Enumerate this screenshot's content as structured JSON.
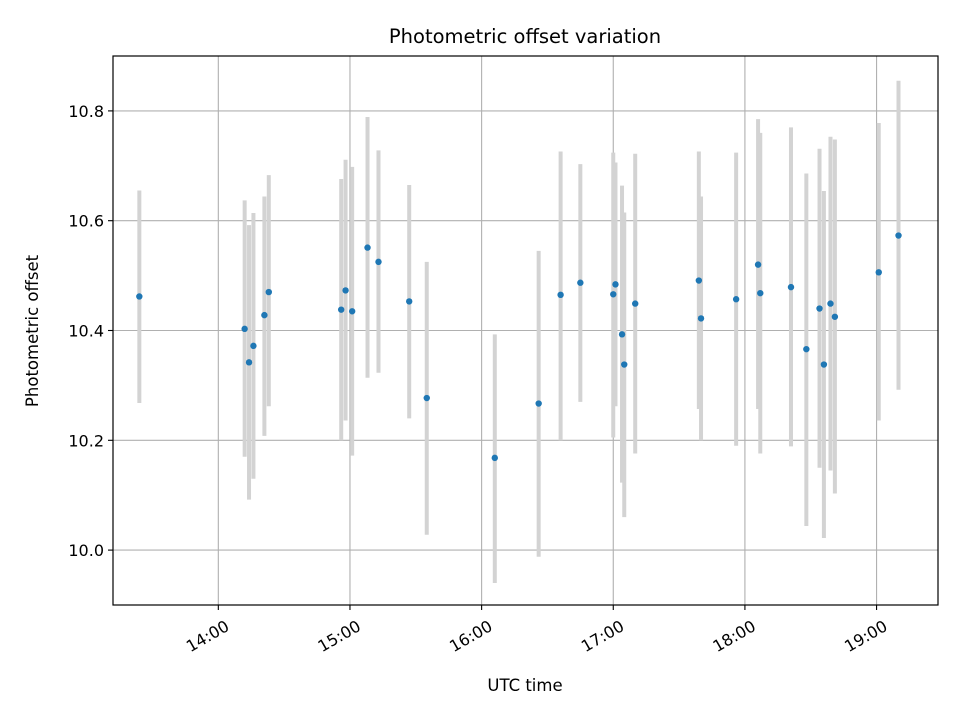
{
  "chart_data": {
    "type": "scatter",
    "title": "Photometric offset variation",
    "xlabel": "UTC time",
    "ylabel": "Photometric offset",
    "xlim": [
      "13:12",
      "19:28"
    ],
    "ylim": [
      9.9,
      10.9
    ],
    "xticks": [
      "14:00",
      "15:00",
      "16:00",
      "17:00",
      "18:00",
      "19:00"
    ],
    "yticks": [
      10.0,
      10.2,
      10.4,
      10.6,
      10.8
    ],
    "ytick_labels": [
      "10.0",
      "10.2",
      "10.4",
      "10.6",
      "10.8"
    ],
    "grid": true,
    "legend": "none",
    "colors": {
      "point": "#1f77b4",
      "errorbar": "#d3d3d3",
      "grid": "#b0b0b0"
    },
    "series": [
      {
        "points": [
          {
            "t": "13:24",
            "y": 10.462,
            "lo": 10.268,
            "hi": 10.655
          },
          {
            "t": "14:12",
            "y": 10.403,
            "lo": 10.17,
            "hi": 10.637
          },
          {
            "t": "14:14",
            "y": 10.342,
            "lo": 10.092,
            "hi": 10.592
          },
          {
            "t": "14:16",
            "y": 10.372,
            "lo": 10.13,
            "hi": 10.614
          },
          {
            "t": "14:21",
            "y": 10.428,
            "lo": 10.208,
            "hi": 10.644
          },
          {
            "t": "14:23",
            "y": 10.47,
            "lo": 10.262,
            "hi": 10.683
          },
          {
            "t": "14:56",
            "y": 10.438,
            "lo": 10.2,
            "hi": 10.676
          },
          {
            "t": "14:58",
            "y": 10.473,
            "lo": 10.236,
            "hi": 10.711
          },
          {
            "t": "15:01",
            "y": 10.435,
            "lo": 10.172,
            "hi": 10.698
          },
          {
            "t": "15:08",
            "y": 10.551,
            "lo": 10.314,
            "hi": 10.789
          },
          {
            "t": "15:13",
            "y": 10.525,
            "lo": 10.323,
            "hi": 10.728
          },
          {
            "t": "15:27",
            "y": 10.453,
            "lo": 10.24,
            "hi": 10.665
          },
          {
            "t": "15:35",
            "y": 10.277,
            "lo": 10.028,
            "hi": 10.525
          },
          {
            "t": "16:06",
            "y": 10.168,
            "lo": 9.94,
            "hi": 10.393
          },
          {
            "t": "16:26",
            "y": 10.267,
            "lo": 9.988,
            "hi": 10.545
          },
          {
            "t": "16:36",
            "y": 10.465,
            "lo": 10.2,
            "hi": 10.726
          },
          {
            "t": "16:45",
            "y": 10.487,
            "lo": 10.27,
            "hi": 10.703
          },
          {
            "t": "17:00",
            "y": 10.466,
            "lo": 10.205,
            "hi": 10.724
          },
          {
            "t": "17:01",
            "y": 10.484,
            "lo": 10.262,
            "hi": 10.706
          },
          {
            "t": "17:04",
            "y": 10.393,
            "lo": 10.123,
            "hi": 10.664
          },
          {
            "t": "17:05",
            "y": 10.338,
            "lo": 10.06,
            "hi": 10.615
          },
          {
            "t": "17:10",
            "y": 10.449,
            "lo": 10.176,
            "hi": 10.722
          },
          {
            "t": "17:39",
            "y": 10.491,
            "lo": 10.257,
            "hi": 10.726
          },
          {
            "t": "17:40",
            "y": 10.422,
            "lo": 10.2,
            "hi": 10.644
          },
          {
            "t": "17:56",
            "y": 10.457,
            "lo": 10.19,
            "hi": 10.724
          },
          {
            "t": "18:06",
            "y": 10.52,
            "lo": 10.257,
            "hi": 10.785
          },
          {
            "t": "18:07",
            "y": 10.468,
            "lo": 10.176,
            "hi": 10.76
          },
          {
            "t": "18:21",
            "y": 10.479,
            "lo": 10.189,
            "hi": 10.77
          },
          {
            "t": "18:28",
            "y": 10.366,
            "lo": 10.044,
            "hi": 10.686
          },
          {
            "t": "18:34",
            "y": 10.44,
            "lo": 10.15,
            "hi": 10.731
          },
          {
            "t": "18:36",
            "y": 10.338,
            "lo": 10.022,
            "hi": 10.654
          },
          {
            "t": "18:39",
            "y": 10.449,
            "lo": 10.145,
            "hi": 10.753
          },
          {
            "t": "18:41",
            "y": 10.425,
            "lo": 10.103,
            "hi": 10.748
          },
          {
            "t": "19:01",
            "y": 10.506,
            "lo": 10.236,
            "hi": 10.778
          },
          {
            "t": "19:10",
            "y": 10.573,
            "lo": 10.292,
            "hi": 10.855
          }
        ]
      }
    ]
  }
}
